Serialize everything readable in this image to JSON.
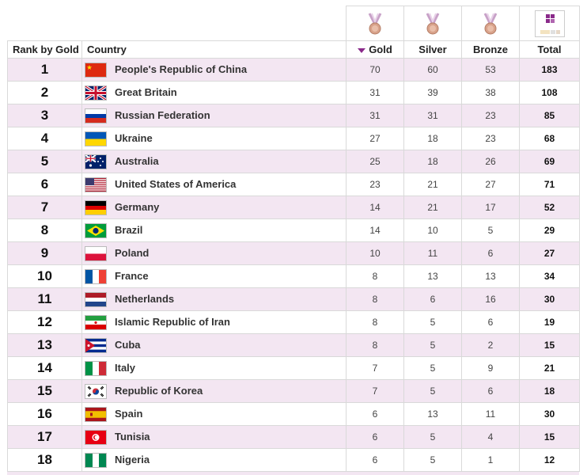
{
  "header": {
    "rank_label": "Rank by Gold",
    "country_label": "Country",
    "gold_label": "Gold",
    "silver_label": "Silver",
    "bronze_label": "Bronze",
    "total_label": "Total",
    "sorted_column": "Gold",
    "accent_color": "#8a2a8a",
    "stripe_color": "#f3e6f2"
  },
  "rows": [
    {
      "rank": "1",
      "country": "People's Republic of China",
      "flag": "china-flag-icon",
      "gold": "70",
      "silver": "60",
      "bronze": "53",
      "total": "183"
    },
    {
      "rank": "2",
      "country": "Great Britain",
      "flag": "great-britain-flag-icon",
      "gold": "31",
      "silver": "39",
      "bronze": "38",
      "total": "108"
    },
    {
      "rank": "3",
      "country": "Russian Federation",
      "flag": "russia-flag-icon",
      "gold": "31",
      "silver": "31",
      "bronze": "23",
      "total": "85"
    },
    {
      "rank": "4",
      "country": "Ukraine",
      "flag": "ukraine-flag-icon",
      "gold": "27",
      "silver": "18",
      "bronze": "23",
      "total": "68"
    },
    {
      "rank": "5",
      "country": "Australia",
      "flag": "australia-flag-icon",
      "gold": "25",
      "silver": "18",
      "bronze": "26",
      "total": "69"
    },
    {
      "rank": "6",
      "country": "United States of America",
      "flag": "usa-flag-icon",
      "gold": "23",
      "silver": "21",
      "bronze": "27",
      "total": "71"
    },
    {
      "rank": "7",
      "country": "Germany",
      "flag": "germany-flag-icon",
      "gold": "14",
      "silver": "21",
      "bronze": "17",
      "total": "52"
    },
    {
      "rank": "8",
      "country": "Brazil",
      "flag": "brazil-flag-icon",
      "gold": "14",
      "silver": "10",
      "bronze": "5",
      "total": "29"
    },
    {
      "rank": "9",
      "country": "Poland",
      "flag": "poland-flag-icon",
      "gold": "10",
      "silver": "11",
      "bronze": "6",
      "total": "27"
    },
    {
      "rank": "10",
      "country": "France",
      "flag": "france-flag-icon",
      "gold": "8",
      "silver": "13",
      "bronze": "13",
      "total": "34"
    },
    {
      "rank": "11",
      "country": "Netherlands",
      "flag": "netherlands-flag-icon",
      "gold": "8",
      "silver": "6",
      "bronze": "16",
      "total": "30"
    },
    {
      "rank": "12",
      "country": "Islamic Republic of Iran",
      "flag": "iran-flag-icon",
      "gold": "8",
      "silver": "5",
      "bronze": "6",
      "total": "19"
    },
    {
      "rank": "13",
      "country": "Cuba",
      "flag": "cuba-flag-icon",
      "gold": "8",
      "silver": "5",
      "bronze": "2",
      "total": "15"
    },
    {
      "rank": "14",
      "country": "Italy",
      "flag": "italy-flag-icon",
      "gold": "7",
      "silver": "5",
      "bronze": "9",
      "total": "21"
    },
    {
      "rank": "15",
      "country": "Republic of Korea",
      "flag": "korea-flag-icon",
      "gold": "7",
      "silver": "5",
      "bronze": "6",
      "total": "18"
    },
    {
      "rank": "16",
      "country": "Spain",
      "flag": "spain-flag-icon",
      "gold": "6",
      "silver": "13",
      "bronze": "11",
      "total": "30"
    },
    {
      "rank": "17",
      "country": "Tunisia",
      "flag": "tunisia-flag-icon",
      "gold": "6",
      "silver": "5",
      "bronze": "4",
      "total": "15"
    },
    {
      "rank": "18",
      "country": "Nigeria",
      "flag": "nigeria-flag-icon",
      "gold": "6",
      "silver": "5",
      "bronze": "1",
      "total": "12"
    }
  ],
  "icons": {
    "gold_medal": "gold-medal-icon",
    "silver_medal": "silver-medal-icon",
    "bronze_medal": "bronze-medal-icon",
    "total": "total-medals-icon"
  }
}
